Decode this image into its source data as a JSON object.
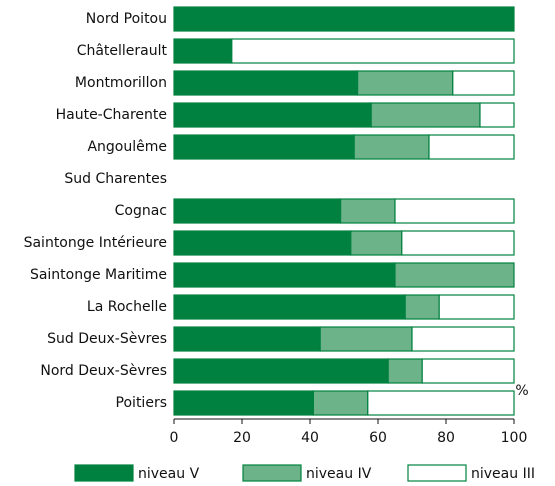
{
  "chart_data": {
    "type": "stacked-bar-horizontal",
    "categories": [
      "Nord Poitou",
      "Châtellerault",
      "Montmorillon",
      "Haute-Charente",
      "Angoulême",
      "Sud Charentes",
      "Cognac",
      "Saintonge Intérieure",
      "Saintonge Maritime",
      "La Rochelle",
      "Sud Deux-Sèvres",
      "Nord Deux-Sèvres",
      "Poitiers"
    ],
    "series": [
      {
        "name": "niveau V",
        "color": "#00813f",
        "values": [
          100,
          17,
          54,
          58,
          53,
          0,
          49,
          52,
          65,
          68,
          43,
          63,
          41
        ]
      },
      {
        "name": "niveau IV",
        "color": "#6db38a",
        "values": [
          0,
          0,
          28,
          32,
          22,
          0,
          16,
          15,
          35,
          10,
          27,
          10,
          16
        ]
      },
      {
        "name": "niveau III",
        "color": "#ffffff",
        "values": [
          0,
          83,
          18,
          10,
          25,
          0,
          35,
          33,
          0,
          22,
          30,
          27,
          43
        ]
      }
    ],
    "xlabel": "%",
    "xlim": [
      0,
      100
    ],
    "xticks": [
      0,
      20,
      40,
      60,
      80,
      100
    ],
    "legend": "bottom"
  }
}
